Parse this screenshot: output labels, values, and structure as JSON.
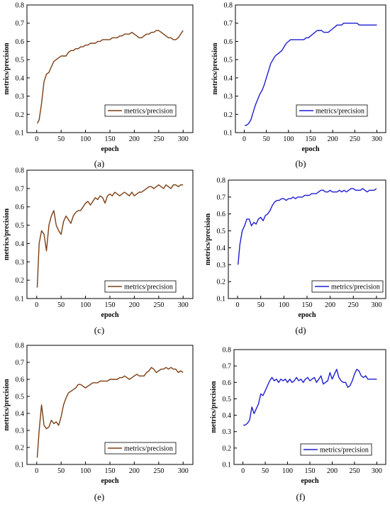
{
  "chart_data": [
    {
      "panel": "(a)",
      "type": "line",
      "xlabel": "epoch",
      "ylabel": "metrics/precision",
      "xlim": [
        -20,
        320
      ],
      "ylim": [
        0.1,
        0.8
      ],
      "xticks": [
        0,
        50,
        100,
        150,
        200,
        250,
        300
      ],
      "yticks": [
        0.1,
        0.2,
        0.3,
        0.4,
        0.5,
        0.6,
        0.7,
        0.8
      ],
      "legend": "bottom-right",
      "grid": false,
      "series": [
        {
          "name": "metrics/precision",
          "color": "#7b3f14",
          "x": [
            1,
            5,
            10,
            15,
            20,
            25,
            30,
            35,
            40,
            45,
            50,
            55,
            60,
            65,
            70,
            75,
            80,
            85,
            90,
            95,
            100,
            105,
            110,
            115,
            120,
            125,
            130,
            135,
            140,
            145,
            150,
            155,
            160,
            165,
            170,
            175,
            180,
            185,
            190,
            195,
            200,
            205,
            210,
            215,
            220,
            225,
            230,
            235,
            240,
            245,
            250,
            255,
            260,
            265,
            270,
            275,
            280,
            285,
            290,
            295,
            300
          ],
          "y": [
            0.15,
            0.17,
            0.26,
            0.38,
            0.42,
            0.43,
            0.46,
            0.49,
            0.5,
            0.51,
            0.52,
            0.52,
            0.52,
            0.54,
            0.55,
            0.55,
            0.56,
            0.56,
            0.57,
            0.57,
            0.58,
            0.58,
            0.59,
            0.59,
            0.59,
            0.6,
            0.6,
            0.61,
            0.61,
            0.61,
            0.61,
            0.62,
            0.62,
            0.62,
            0.63,
            0.63,
            0.64,
            0.64,
            0.64,
            0.65,
            0.64,
            0.63,
            0.62,
            0.62,
            0.63,
            0.64,
            0.64,
            0.65,
            0.65,
            0.66,
            0.66,
            0.65,
            0.64,
            0.63,
            0.62,
            0.62,
            0.61,
            0.61,
            0.62,
            0.64,
            0.66
          ]
        }
      ],
      "caption": "(a)"
    },
    {
      "panel": "(b)",
      "type": "line",
      "xlabel": "epoch",
      "ylabel": "metrics/precision",
      "xlim": [
        -20,
        320
      ],
      "ylim": [
        0.1,
        0.8
      ],
      "xticks": [
        0,
        50,
        100,
        150,
        200,
        250,
        300
      ],
      "yticks": [
        0.1,
        0.2,
        0.3,
        0.4,
        0.5,
        0.6,
        0.7,
        0.8
      ],
      "legend": "bottom-right",
      "grid": false,
      "series": [
        {
          "name": "metrics/precision",
          "color": "#1e1ed2",
          "x": [
            1,
            5,
            10,
            15,
            20,
            25,
            30,
            35,
            40,
            45,
            50,
            55,
            60,
            65,
            70,
            75,
            80,
            85,
            90,
            95,
            100,
            105,
            110,
            115,
            120,
            125,
            130,
            135,
            140,
            145,
            150,
            155,
            160,
            165,
            170,
            175,
            180,
            185,
            190,
            195,
            200,
            205,
            210,
            215,
            220,
            225,
            230,
            235,
            240,
            245,
            250,
            255,
            260,
            265,
            270,
            275,
            280,
            285,
            290,
            295,
            300
          ],
          "y": [
            0.14,
            0.14,
            0.15,
            0.17,
            0.21,
            0.25,
            0.28,
            0.31,
            0.33,
            0.36,
            0.4,
            0.44,
            0.48,
            0.5,
            0.52,
            0.53,
            0.54,
            0.55,
            0.57,
            0.59,
            0.6,
            0.61,
            0.61,
            0.61,
            0.61,
            0.61,
            0.61,
            0.61,
            0.62,
            0.62,
            0.63,
            0.64,
            0.65,
            0.66,
            0.66,
            0.66,
            0.65,
            0.65,
            0.65,
            0.66,
            0.67,
            0.68,
            0.69,
            0.69,
            0.69,
            0.7,
            0.7,
            0.7,
            0.7,
            0.7,
            0.7,
            0.7,
            0.69,
            0.69,
            0.69,
            0.69,
            0.69,
            0.69,
            0.69,
            0.69,
            0.69
          ]
        }
      ],
      "caption": "(b)"
    },
    {
      "panel": "(c)",
      "type": "line",
      "xlabel": "epoch",
      "ylabel": "metrics/precision",
      "xlim": [
        -20,
        320
      ],
      "ylim": [
        0.1,
        0.8
      ],
      "xticks": [
        0,
        50,
        100,
        150,
        200,
        250,
        300
      ],
      "yticks": [
        0.1,
        0.2,
        0.3,
        0.4,
        0.5,
        0.6,
        0.7,
        0.8
      ],
      "legend": "bottom-right",
      "grid": false,
      "series": [
        {
          "name": "metrics/precision",
          "color": "#7b3f14",
          "x": [
            1,
            5,
            10,
            15,
            20,
            25,
            30,
            35,
            40,
            45,
            50,
            55,
            60,
            65,
            70,
            75,
            80,
            85,
            90,
            95,
            100,
            105,
            110,
            115,
            120,
            125,
            130,
            135,
            140,
            145,
            150,
            155,
            160,
            165,
            170,
            175,
            180,
            185,
            190,
            195,
            200,
            205,
            210,
            215,
            220,
            225,
            230,
            235,
            240,
            245,
            250,
            255,
            260,
            265,
            270,
            275,
            280,
            285,
            290,
            295,
            300
          ],
          "y": [
            0.16,
            0.4,
            0.47,
            0.45,
            0.36,
            0.5,
            0.55,
            0.58,
            0.5,
            0.47,
            0.45,
            0.52,
            0.55,
            0.53,
            0.51,
            0.55,
            0.57,
            0.58,
            0.58,
            0.6,
            0.62,
            0.63,
            0.61,
            0.63,
            0.65,
            0.64,
            0.66,
            0.65,
            0.62,
            0.66,
            0.67,
            0.66,
            0.68,
            0.67,
            0.66,
            0.67,
            0.68,
            0.67,
            0.66,
            0.68,
            0.66,
            0.67,
            0.68,
            0.68,
            0.69,
            0.7,
            0.71,
            0.71,
            0.7,
            0.71,
            0.72,
            0.71,
            0.7,
            0.72,
            0.71,
            0.7,
            0.72,
            0.72,
            0.71,
            0.72,
            0.72
          ]
        }
      ],
      "caption": "(c)"
    },
    {
      "panel": "(d)",
      "type": "line",
      "xlabel": "epoch",
      "ylabel": "metrics/precision",
      "xlim": [
        -20,
        320
      ],
      "ylim": [
        0.1,
        0.8
      ],
      "xticks": [
        0,
        50,
        100,
        150,
        200,
        250,
        300
      ],
      "yticks": [
        0.1,
        0.2,
        0.3,
        0.4,
        0.5,
        0.6,
        0.7,
        0.8
      ],
      "legend": "bottom-right",
      "grid": false,
      "series": [
        {
          "name": "metrics/precision",
          "color": "#1e1ed2",
          "x": [
            1,
            5,
            10,
            15,
            20,
            25,
            30,
            35,
            40,
            45,
            50,
            55,
            60,
            65,
            70,
            75,
            80,
            85,
            90,
            95,
            100,
            105,
            110,
            115,
            120,
            125,
            130,
            135,
            140,
            145,
            150,
            155,
            160,
            165,
            170,
            175,
            180,
            185,
            190,
            195,
            200,
            205,
            210,
            215,
            220,
            225,
            230,
            235,
            240,
            245,
            250,
            255,
            260,
            265,
            270,
            275,
            280,
            285,
            290,
            295,
            300
          ],
          "y": [
            0.3,
            0.42,
            0.5,
            0.53,
            0.57,
            0.57,
            0.53,
            0.55,
            0.54,
            0.57,
            0.58,
            0.56,
            0.59,
            0.6,
            0.62,
            0.65,
            0.67,
            0.68,
            0.68,
            0.69,
            0.69,
            0.68,
            0.69,
            0.69,
            0.7,
            0.69,
            0.7,
            0.7,
            0.7,
            0.71,
            0.71,
            0.71,
            0.72,
            0.72,
            0.72,
            0.73,
            0.74,
            0.74,
            0.73,
            0.73,
            0.74,
            0.73,
            0.73,
            0.73,
            0.74,
            0.73,
            0.74,
            0.73,
            0.74,
            0.75,
            0.75,
            0.74,
            0.74,
            0.74,
            0.75,
            0.74,
            0.73,
            0.74,
            0.74,
            0.74,
            0.75
          ]
        }
      ],
      "caption": "(d)"
    },
    {
      "panel": "(e)",
      "type": "line",
      "xlabel": "epoch",
      "ylabel": "metrics/precision",
      "xlim": [
        -20,
        320
      ],
      "ylim": [
        0.1,
        0.8
      ],
      "xticks": [
        0,
        50,
        100,
        150,
        200,
        250,
        300
      ],
      "yticks": [
        0.1,
        0.2,
        0.3,
        0.4,
        0.5,
        0.6,
        0.7,
        0.8
      ],
      "legend": "bottom-right",
      "grid": false,
      "series": [
        {
          "name": "metrics/precision",
          "color": "#7b3f14",
          "x": [
            1,
            5,
            10,
            15,
            20,
            25,
            30,
            35,
            40,
            45,
            50,
            55,
            60,
            65,
            70,
            75,
            80,
            85,
            90,
            95,
            100,
            105,
            110,
            115,
            120,
            125,
            130,
            135,
            140,
            145,
            150,
            155,
            160,
            165,
            170,
            175,
            180,
            185,
            190,
            195,
            200,
            205,
            210,
            215,
            220,
            225,
            230,
            235,
            240,
            245,
            250,
            255,
            260,
            265,
            270,
            275,
            280,
            285,
            290,
            295,
            300
          ],
          "y": [
            0.14,
            0.3,
            0.45,
            0.33,
            0.31,
            0.32,
            0.36,
            0.34,
            0.35,
            0.33,
            0.38,
            0.45,
            0.49,
            0.52,
            0.53,
            0.54,
            0.55,
            0.57,
            0.57,
            0.56,
            0.55,
            0.56,
            0.57,
            0.58,
            0.58,
            0.58,
            0.59,
            0.59,
            0.59,
            0.59,
            0.6,
            0.6,
            0.6,
            0.6,
            0.61,
            0.61,
            0.62,
            0.61,
            0.6,
            0.61,
            0.62,
            0.63,
            0.62,
            0.62,
            0.62,
            0.64,
            0.65,
            0.67,
            0.66,
            0.64,
            0.65,
            0.66,
            0.66,
            0.67,
            0.66,
            0.67,
            0.66,
            0.66,
            0.64,
            0.65,
            0.64
          ]
        }
      ],
      "caption": "(e)"
    },
    {
      "panel": "(f)",
      "type": "line",
      "xlabel": "epoch",
      "ylabel": "metrics/precision",
      "xlim": [
        -20,
        320
      ],
      "ylim": [
        0.1,
        0.8
      ],
      "xticks": [
        0,
        50,
        100,
        150,
        200,
        250,
        300
      ],
      "yticks": [
        0.1,
        0.2,
        0.3,
        0.4,
        0.5,
        0.6,
        0.7,
        0.8
      ],
      "legend": "bottom-right",
      "grid": false,
      "series": [
        {
          "name": "metrics/precision",
          "color": "#1e1ed2",
          "x": [
            1,
            5,
            10,
            15,
            20,
            25,
            30,
            35,
            40,
            45,
            50,
            55,
            60,
            65,
            70,
            75,
            80,
            85,
            90,
            95,
            100,
            105,
            110,
            115,
            120,
            125,
            130,
            135,
            140,
            145,
            150,
            155,
            160,
            165,
            170,
            175,
            180,
            185,
            190,
            195,
            200,
            205,
            210,
            215,
            220,
            225,
            230,
            235,
            240,
            245,
            250,
            255,
            260,
            265,
            270,
            275,
            280,
            285,
            290,
            295,
            300
          ],
          "y": [
            0.34,
            0.34,
            0.35,
            0.37,
            0.45,
            0.41,
            0.44,
            0.47,
            0.53,
            0.52,
            0.55,
            0.58,
            0.61,
            0.63,
            0.61,
            0.62,
            0.6,
            0.62,
            0.61,
            0.62,
            0.6,
            0.62,
            0.6,
            0.61,
            0.63,
            0.61,
            0.62,
            0.6,
            0.62,
            0.63,
            0.61,
            0.62,
            0.63,
            0.6,
            0.62,
            0.64,
            0.59,
            0.6,
            0.61,
            0.66,
            0.62,
            0.65,
            0.68,
            0.63,
            0.61,
            0.6,
            0.6,
            0.57,
            0.58,
            0.61,
            0.65,
            0.68,
            0.67,
            0.64,
            0.63,
            0.64,
            0.62,
            0.62,
            0.62,
            0.62,
            0.62
          ]
        }
      ],
      "caption": "(f)"
    }
  ]
}
